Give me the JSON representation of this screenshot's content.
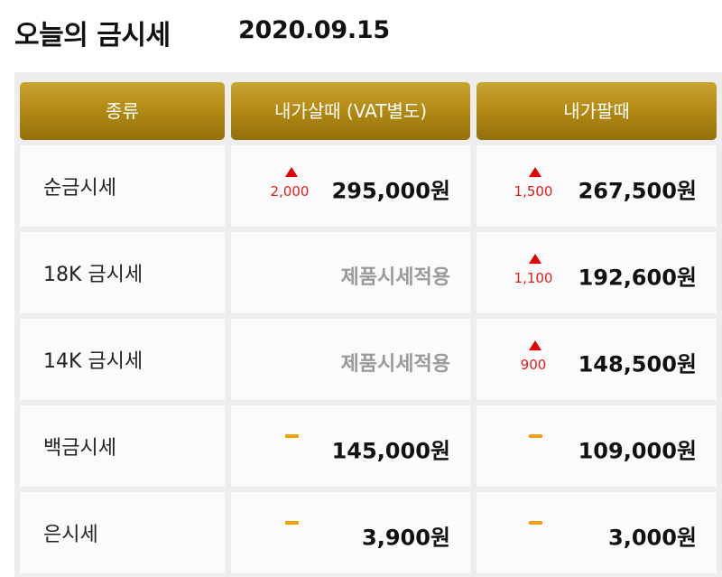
{
  "header": {
    "title": "오늘의 금시세",
    "date": "2020.09.15"
  },
  "columns": [
    "종류",
    "내가살때 (VAT별도)",
    "내가팔때"
  ],
  "rows": [
    {
      "label": "순금시세",
      "buy": {
        "trend": "up",
        "change": "2,000",
        "price": "295,000원"
      },
      "sell": {
        "trend": "up",
        "change": "1,500",
        "price": "267,500원"
      }
    },
    {
      "label": "18K 금시세",
      "buy": {
        "note": "제품시세적용"
      },
      "sell": {
        "trend": "up",
        "change": "1,100",
        "price": "192,600원"
      }
    },
    {
      "label": "14K 금시세",
      "buy": {
        "note": "제품시세적용"
      },
      "sell": {
        "trend": "up",
        "change": "900",
        "price": "148,500원"
      }
    },
    {
      "label": "백금시세",
      "buy": {
        "trend": "flat",
        "price": "145,000원"
      },
      "sell": {
        "trend": "flat",
        "price": "109,000원"
      }
    },
    {
      "label": "은시세",
      "buy": {
        "trend": "flat",
        "price": "3,900원"
      },
      "sell": {
        "trend": "flat",
        "price": "3,000원"
      }
    }
  ],
  "icons": {
    "up": "up-triangle-icon",
    "flat": "dash-icon"
  },
  "colors": {
    "header_gold": "#b48b14",
    "up_red": "#e60000",
    "flat_orange": "#f2a200",
    "note_gray": "#9a9a9a"
  }
}
